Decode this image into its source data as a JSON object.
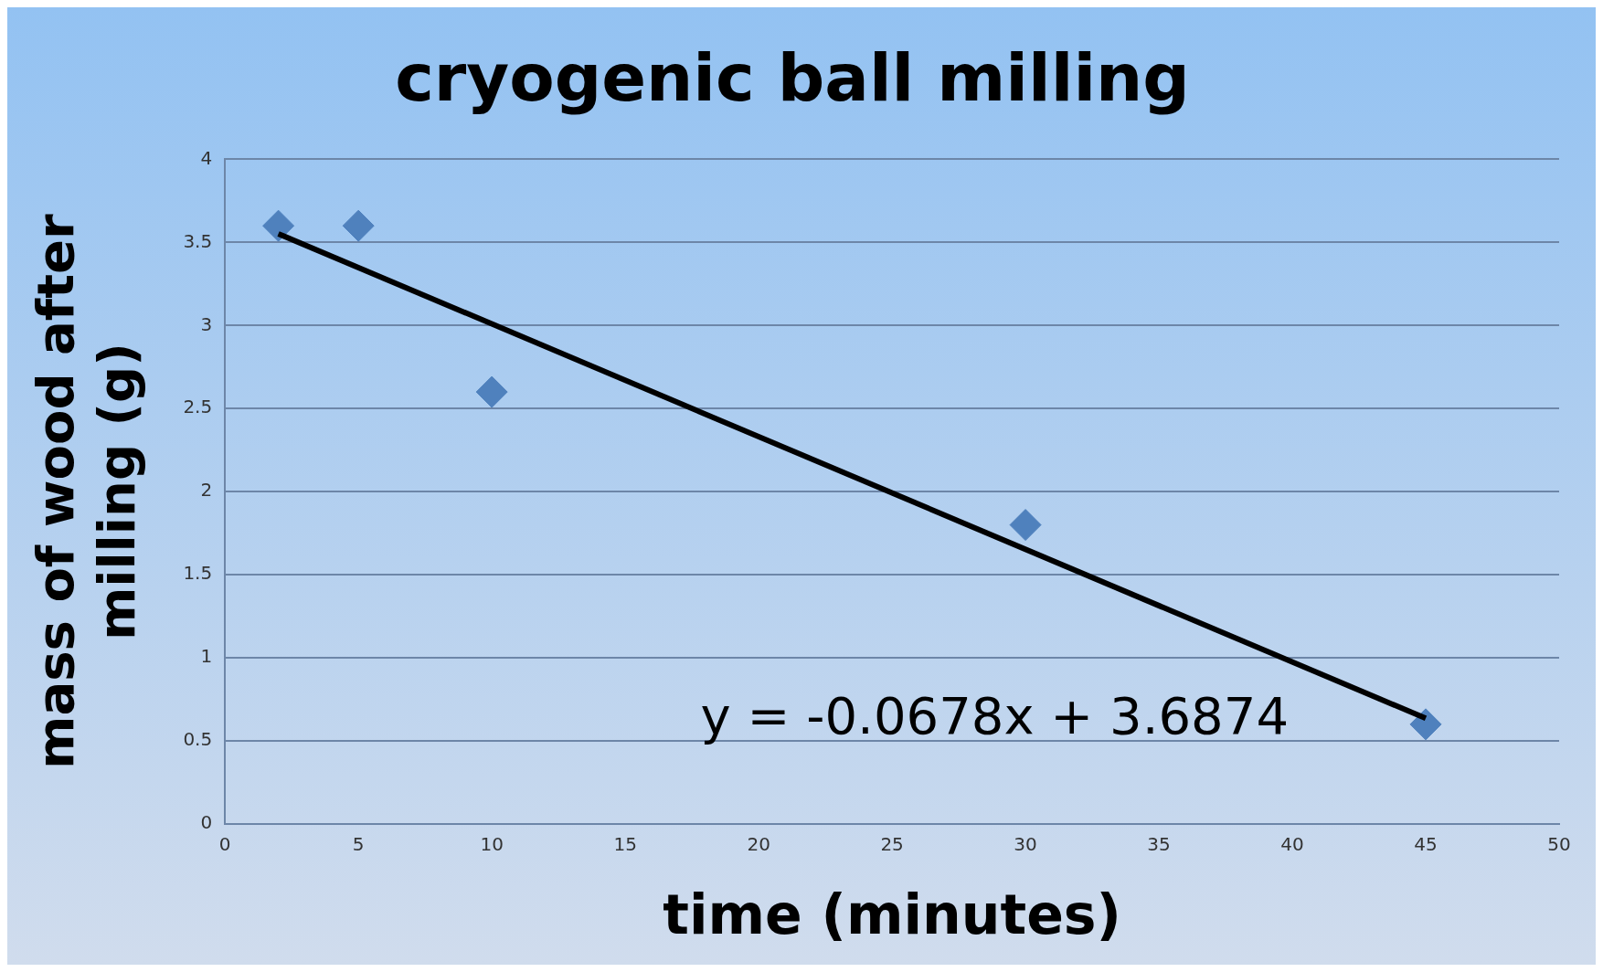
{
  "chart_data": {
    "type": "scatter",
    "title": "cryogenic ball milling",
    "xlabel": "time (minutes)",
    "ylabel": "mass of wood after milling (g)",
    "x": [
      2,
      5,
      10,
      30,
      45
    ],
    "marker": "diamond",
    "series": [
      {
        "type": "scatter",
        "color": "#4f81bd",
        "values": [
          3.6,
          3.6,
          2.6,
          1.8,
          0.6
        ]
      },
      {
        "type": "line",
        "color": "#000000",
        "x": [
          2,
          45
        ],
        "values": [
          3.552,
          0.636
        ],
        "marker": "none",
        "line_style": "solid"
      }
    ],
    "xlim": [
      0,
      50
    ],
    "xticks": [
      0,
      5,
      10,
      15,
      20,
      25,
      30,
      35,
      40,
      45,
      50
    ],
    "ylim": [
      0,
      4
    ],
    "yticks": [
      0,
      0.5,
      1,
      1.5,
      2,
      2.5,
      3,
      3.5,
      4
    ],
    "grid": "y",
    "legend": false,
    "annotations": [
      "y = -0.0678x + 3.6874"
    ]
  }
}
